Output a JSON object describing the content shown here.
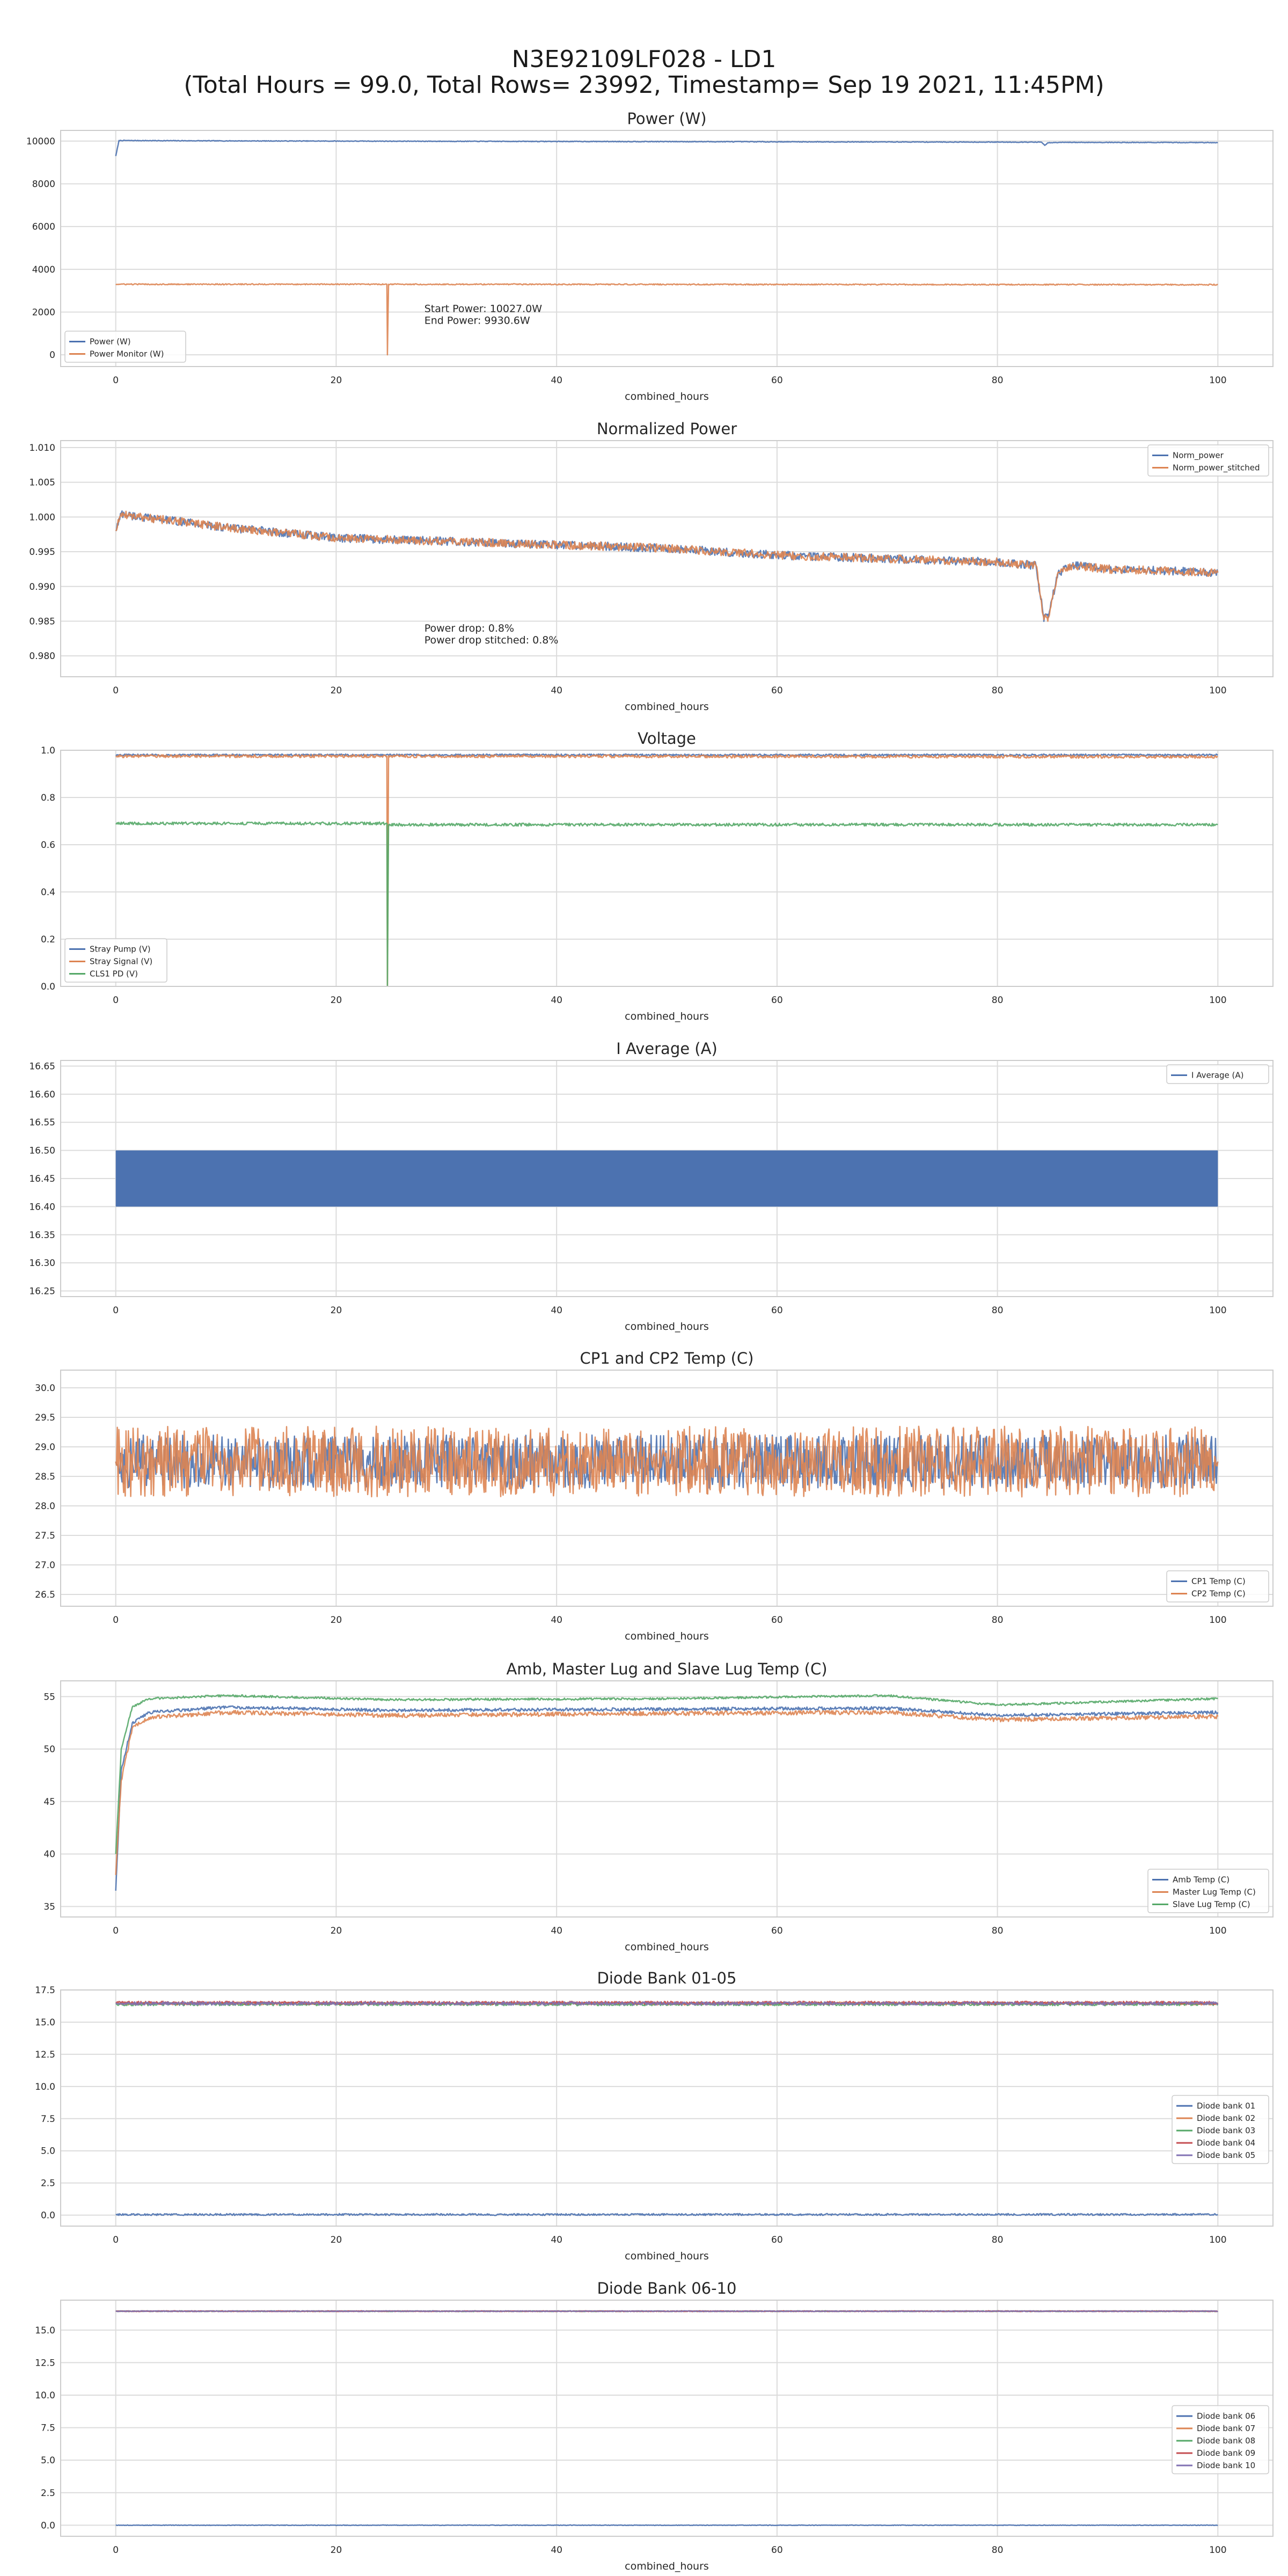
{
  "figure": {
    "title_line1": "N3E92109LF028 - LD1",
    "title_line2": "(Total Hours = 99.0, Total Rows= 23992, Timestamp= Sep 19 2021, 11:45PM)"
  },
  "colors": {
    "blue": "#4c72b0",
    "orange": "#dd8452",
    "green": "#55a868",
    "red": "#c44e52",
    "purple": "#8172b3",
    "grid": "#dcdcdc",
    "frame": "#cccccc",
    "text": "#262626"
  },
  "chart_data": [
    {
      "type": "line",
      "title": "Power (W)",
      "xlabel": "combined_hours",
      "ylabel": "",
      "xlim": [
        -5,
        105
      ],
      "xticks": [
        0,
        20,
        40,
        60,
        80,
        100
      ],
      "ylim": [
        -550,
        10500
      ],
      "yticks": [
        0,
        2000,
        4000,
        6000,
        8000,
        10000
      ],
      "ytick_labels": [
        "0",
        "2000",
        "4000",
        "6000",
        "8000",
        "10000"
      ],
      "grid": true,
      "legend_position": "lower left",
      "annotation": [
        "Start Power: 10027.0W",
        "End Power: 9930.6W"
      ],
      "annotation_at": [
        28,
        2000
      ],
      "series": [
        {
          "name": "Power (W)",
          "color": "blue",
          "noise": 15,
          "x": [
            0,
            0.3,
            10,
            30,
            50,
            70,
            84,
            84.3,
            84.6,
            86,
            100
          ],
          "y": [
            9300,
            10027,
            10010,
            9990,
            9975,
            9960,
            9950,
            9800,
            9920,
            9940,
            9930.6
          ]
        },
        {
          "name": "Power Monitor (W)",
          "color": "orange",
          "noise": 25,
          "x": [
            0,
            24.6,
            24.65,
            24.75,
            100
          ],
          "y": [
            3300,
            3300,
            0,
            3300,
            3280
          ]
        }
      ]
    },
    {
      "type": "line",
      "title": "Normalized Power",
      "xlabel": "combined_hours",
      "ylabel": "",
      "xlim": [
        -5,
        105
      ],
      "xticks": [
        0,
        20,
        40,
        60,
        80,
        100
      ],
      "ylim": [
        0.977,
        1.011
      ],
      "yticks": [
        0.98,
        0.985,
        0.99,
        0.995,
        1.0,
        1.005,
        1.01
      ],
      "ytick_labels": [
        "0.980",
        "0.985",
        "0.990",
        "0.995",
        "1.000",
        "1.005",
        "1.010"
      ],
      "grid": true,
      "legend_position": "upper right",
      "annotation": [
        "Power drop: 0.8%",
        "Power drop stitched: 0.8%"
      ],
      "annotation_at": [
        28,
        0.9835
      ],
      "series": [
        {
          "name": "Norm_power",
          "color": "blue",
          "noise": 0.0006,
          "x": [
            0,
            0.5,
            2,
            5,
            10,
            20,
            30,
            40,
            50,
            60,
            70,
            80,
            83.5,
            84.2,
            84.6,
            85.5,
            87,
            90,
            100
          ],
          "y": [
            0.998,
            1.0005,
            1.0,
            0.9995,
            0.9985,
            0.997,
            0.9965,
            0.996,
            0.9955,
            0.9945,
            0.994,
            0.9935,
            0.993,
            0.9855,
            0.9855,
            0.992,
            0.993,
            0.9925,
            0.992
          ]
        },
        {
          "name": "Norm_power_stitched",
          "color": "orange",
          "noise": 0.0006,
          "x": [
            0,
            0.5,
            2,
            5,
            10,
            20,
            30,
            40,
            50,
            60,
            70,
            80,
            83.5,
            84.2,
            84.6,
            85.5,
            87,
            90,
            100
          ],
          "y": [
            0.998,
            1.0005,
            1.0,
            0.9995,
            0.9985,
            0.997,
            0.9965,
            0.996,
            0.9955,
            0.9945,
            0.994,
            0.9935,
            0.993,
            0.9855,
            0.9855,
            0.992,
            0.993,
            0.9925,
            0.992
          ]
        }
      ]
    },
    {
      "type": "line",
      "title": "Voltage",
      "xlabel": "combined_hours",
      "ylabel": "",
      "xlim": [
        -5,
        105
      ],
      "xticks": [
        0,
        20,
        40,
        60,
        80,
        100
      ],
      "ylim": [
        0.0,
        1.0
      ],
      "yticks": [
        0.0,
        0.2,
        0.4,
        0.6,
        0.8,
        1.0
      ],
      "ytick_labels": [
        "0.0",
        "0.2",
        "0.4",
        "0.6",
        "0.8",
        "1.0"
      ],
      "grid": true,
      "legend_position": "lower left",
      "series": [
        {
          "name": "Stray Pump (V)",
          "color": "blue",
          "noise": 0.004,
          "x": [
            0,
            100
          ],
          "y": [
            0.98,
            0.98
          ]
        },
        {
          "name": "Stray Signal (V)",
          "color": "orange",
          "noise": 0.006,
          "x": [
            0,
            24.6,
            24.65,
            24.75,
            100
          ],
          "y": [
            0.975,
            0.975,
            0.0,
            0.975,
            0.972
          ]
        },
        {
          "name": "CLS1 PD (V)",
          "color": "green",
          "noise": 0.006,
          "x": [
            0,
            24.6,
            24.65,
            24.75,
            100
          ],
          "y": [
            0.69,
            0.69,
            0.0,
            0.685,
            0.685
          ]
        }
      ]
    },
    {
      "type": "line",
      "title": "I Average (A)",
      "xlabel": "combined_hours",
      "ylabel": "",
      "xlim": [
        -5,
        105
      ],
      "xticks": [
        0,
        20,
        40,
        60,
        80,
        100
      ],
      "ylim": [
        16.24,
        16.66
      ],
      "yticks": [
        16.25,
        16.3,
        16.35,
        16.4,
        16.45,
        16.5,
        16.55,
        16.6,
        16.65
      ],
      "ytick_labels": [
        "16.25",
        "16.30",
        "16.35",
        "16.40",
        "16.45",
        "16.50",
        "16.55",
        "16.60",
        "16.65"
      ],
      "grid": true,
      "legend_position": "upper right",
      "series": [
        {
          "name": "I Average (A)",
          "color": "blue",
          "style": "band",
          "x": [
            0,
            100
          ],
          "y_low": [
            16.4,
            16.4
          ],
          "y_high": [
            16.5,
            16.5
          ]
        }
      ]
    },
    {
      "type": "line",
      "title": "CP1 and CP2 Temp (C)",
      "xlabel": "combined_hours",
      "ylabel": "",
      "xlim": [
        -5,
        105
      ],
      "xticks": [
        0,
        20,
        40,
        60,
        80,
        100
      ],
      "ylim": [
        26.3,
        30.3
      ],
      "yticks": [
        26.5,
        27.0,
        27.5,
        28.0,
        28.5,
        29.0,
        29.5,
        30.0
      ],
      "ytick_labels": [
        "26.5",
        "27.0",
        "27.5",
        "28.0",
        "28.5",
        "29.0",
        "29.5",
        "30.0"
      ],
      "grid": true,
      "legend_position": "lower right",
      "series": [
        {
          "name": "CP1 Temp (C)",
          "color": "blue",
          "noise": 0.45,
          "x": [
            0,
            100
          ],
          "y": [
            28.75,
            28.75
          ]
        },
        {
          "name": "CP2 Temp (C)",
          "color": "orange",
          "noise": 0.6,
          "x": [
            0,
            100
          ],
          "y": [
            28.75,
            28.75
          ]
        }
      ]
    },
    {
      "type": "line",
      "title": "Amb, Master Lug and Slave Lug Temp (C)",
      "xlabel": "combined_hours",
      "ylabel": "",
      "xlim": [
        -5,
        105
      ],
      "xticks": [
        0,
        20,
        40,
        60,
        80,
        100
      ],
      "ylim": [
        34,
        56.5
      ],
      "yticks": [
        35,
        40,
        45,
        50,
        55
      ],
      "ytick_labels": [
        "35",
        "40",
        "45",
        "50",
        "55"
      ],
      "grid": true,
      "legend_position": "lower right",
      "series": [
        {
          "name": "Amb Temp (C)",
          "color": "blue",
          "noise": 0.15,
          "x": [
            0,
            0.5,
            1.5,
            3,
            10,
            25,
            50,
            70,
            80,
            100
          ],
          "y": [
            36.5,
            48,
            52.5,
            53.5,
            54,
            53.7,
            53.8,
            53.9,
            53.2,
            53.5
          ]
        },
        {
          "name": "Master Lug Temp (C)",
          "color": "orange",
          "noise": 0.2,
          "x": [
            0,
            0.5,
            1.5,
            3,
            10,
            25,
            50,
            70,
            80,
            100
          ],
          "y": [
            38,
            47,
            52,
            53,
            53.5,
            53.2,
            53.4,
            53.5,
            52.8,
            53.1
          ]
        },
        {
          "name": "Slave Lug Temp (C)",
          "color": "green",
          "noise": 0.1,
          "x": [
            0,
            0.5,
            1.5,
            3,
            10,
            25,
            50,
            70,
            80,
            100
          ],
          "y": [
            40,
            50,
            54,
            54.8,
            55.1,
            54.7,
            54.8,
            55.1,
            54.2,
            54.8
          ]
        }
      ]
    },
    {
      "type": "line",
      "title": "Diode Bank 01-05",
      "xlabel": "combined_hours",
      "ylabel": "",
      "xlim": [
        -5,
        105
      ],
      "xticks": [
        0,
        20,
        40,
        60,
        80,
        100
      ],
      "ylim": [
        -0.85,
        17.5
      ],
      "yticks": [
        0.0,
        2.5,
        5.0,
        7.5,
        10.0,
        12.5,
        15.0,
        17.5
      ],
      "ytick_labels": [
        "0.0",
        "2.5",
        "5.0",
        "7.5",
        "10.0",
        "12.5",
        "15.0",
        "17.5"
      ],
      "grid": true,
      "legend_position": "center right",
      "series": [
        {
          "name": "Diode bank 01",
          "color": "blue",
          "noise": 0.07,
          "x": [
            0,
            100
          ],
          "y": [
            0.05,
            0.05
          ]
        },
        {
          "name": "Diode bank 02",
          "color": "orange",
          "noise": 0.12,
          "x": [
            0,
            100
          ],
          "y": [
            16.45,
            16.45
          ]
        },
        {
          "name": "Diode bank 03",
          "color": "green",
          "noise": 0.12,
          "x": [
            0,
            100
          ],
          "y": [
            16.4,
            16.4
          ]
        },
        {
          "name": "Diode bank 04",
          "color": "red",
          "noise": 0.12,
          "x": [
            0,
            100
          ],
          "y": [
            16.5,
            16.5
          ]
        },
        {
          "name": "Diode bank 05",
          "color": "purple",
          "noise": 0.12,
          "x": [
            0,
            100
          ],
          "y": [
            16.45,
            16.45
          ]
        }
      ]
    },
    {
      "type": "line",
      "title": "Diode Bank 06-10",
      "xlabel": "combined_hours",
      "ylabel": "",
      "xlim": [
        -5,
        105
      ],
      "xticks": [
        0,
        20,
        40,
        60,
        80,
        100
      ],
      "ylim": [
        -0.85,
        17.3
      ],
      "yticks": [
        0.0,
        2.5,
        5.0,
        7.5,
        10.0,
        12.5,
        15.0
      ],
      "ytick_labels": [
        "0.0",
        "2.5",
        "5.0",
        "7.5",
        "10.0",
        "12.5",
        "15.0"
      ],
      "grid": true,
      "legend_position": "center right",
      "series": [
        {
          "name": "Diode bank 06",
          "color": "blue",
          "noise": 0.02,
          "x": [
            0,
            100
          ],
          "y": [
            0.0,
            0.0
          ]
        },
        {
          "name": "Diode bank 07",
          "color": "orange",
          "noise": 0.03,
          "x": [
            0,
            100
          ],
          "y": [
            16.45,
            16.45
          ]
        },
        {
          "name": "Diode bank 08",
          "color": "green",
          "noise": 0.03,
          "x": [
            0,
            100
          ],
          "y": [
            16.45,
            16.45
          ]
        },
        {
          "name": "Diode bank 09",
          "color": "red",
          "noise": 0.03,
          "x": [
            0,
            100
          ],
          "y": [
            16.45,
            16.45
          ]
        },
        {
          "name": "Diode bank 10",
          "color": "purple",
          "noise": 0.03,
          "x": [
            0,
            100
          ],
          "y": [
            16.45,
            16.45
          ]
        }
      ]
    }
  ]
}
